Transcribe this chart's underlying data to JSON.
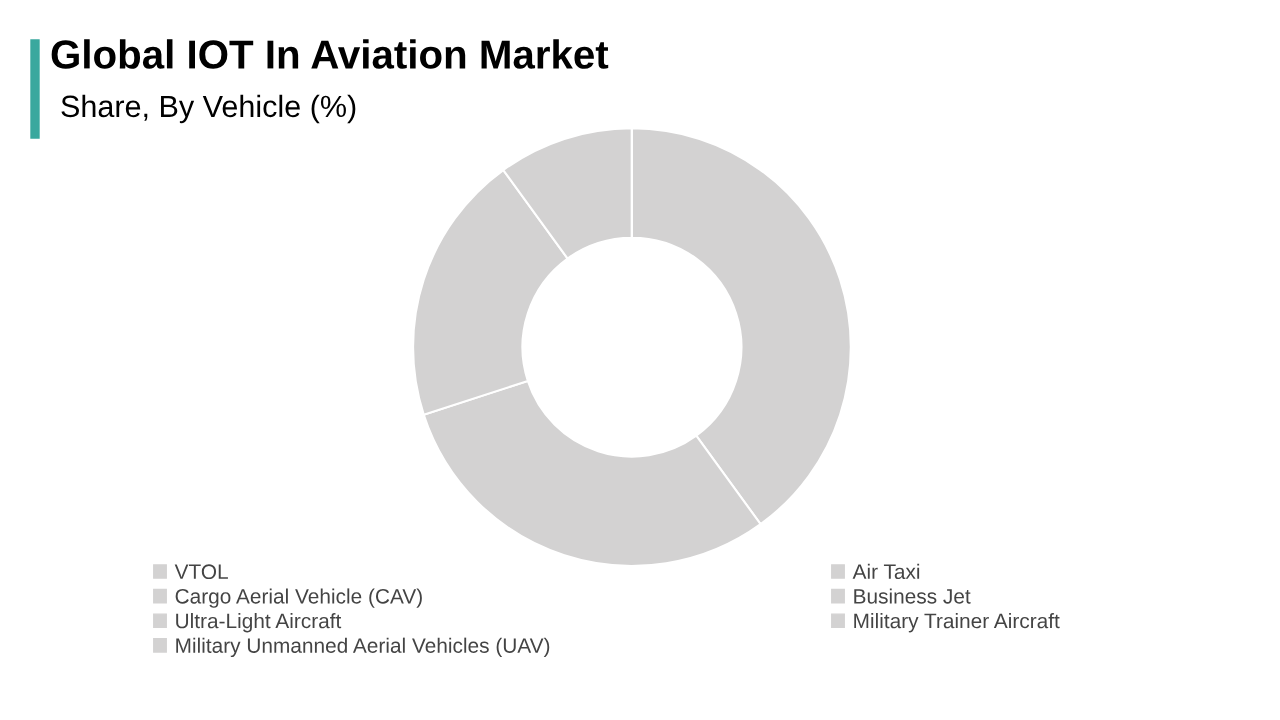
{
  "chart_data": {
    "type": "donut",
    "title": "Global IOT In Aviation Market",
    "subtitle": "Share, By Vehicle (%)",
    "categories": [
      "VTOL",
      "Cargo Aerial Vehicle (CAV)",
      "Ultra-Light Aircraft",
      "Military Unmanned Aerial Vehicles (UAV)",
      "Air Taxi",
      "Business Jet",
      "Military Trainer Aircraft"
    ],
    "values": [
      40,
      30,
      20,
      10,
      0,
      0,
      0
    ],
    "colors": [
      "#d3d2d2",
      "#d3d2d2",
      "#d3d2d2",
      "#d3d2d2",
      "#d3d2d2",
      "#d3d2d2",
      "#d3d2d2"
    ],
    "legend": "bottom"
  }
}
